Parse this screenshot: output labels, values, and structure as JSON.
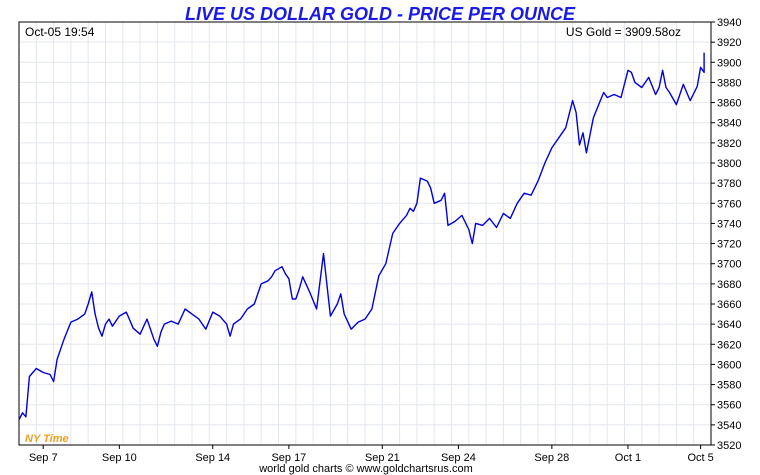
{
  "chart_data": {
    "type": "line",
    "title": "LIVE US DOLLAR GOLD - PRICE PER OUNCE",
    "header_left": "Oct-05  19:54",
    "header_right": "US Gold = 3909.58oz",
    "timezone_label": "NY Time",
    "footer": "world gold charts © www.goldchartsrus.com",
    "ylim": [
      3520,
      3940
    ],
    "yticks": [
      3520,
      3540,
      3560,
      3580,
      3600,
      3620,
      3640,
      3660,
      3680,
      3700,
      3720,
      3740,
      3760,
      3780,
      3800,
      3820,
      3840,
      3860,
      3880,
      3900,
      3920,
      3940
    ],
    "xlim": [
      0,
      100
    ],
    "xticks": [
      {
        "x": 3.5,
        "label": "Sep 7"
      },
      {
        "x": 14.5,
        "label": "Sep 10"
      },
      {
        "x": 28.0,
        "label": "Sep 14"
      },
      {
        "x": 39.0,
        "label": "Sep 17"
      },
      {
        "x": 52.5,
        "label": "Sep 21"
      },
      {
        "x": 63.5,
        "label": "Sep 24"
      },
      {
        "x": 77.0,
        "label": "Sep 28"
      },
      {
        "x": 88.0,
        "label": "Oct 1"
      },
      {
        "x": 98.5,
        "label": "Oct 5"
      }
    ],
    "grid": true,
    "line_color": "#0000dd",
    "series": [
      {
        "x": [
          0.0,
          0.5,
          1.0,
          1.5,
          2.5,
          3.5,
          4.5,
          5.0,
          5.5,
          6.5,
          7.5,
          8.5,
          9.5,
          10.0,
          10.5,
          11.0,
          11.5,
          12.0,
          12.5,
          13.0,
          13.5,
          14.5,
          15.5,
          16.5,
          17.5,
          18.5,
          19.5,
          20.0,
          20.5,
          21.0,
          22.0,
          23.0,
          24.0,
          25.0,
          26.0,
          27.0,
          28.0,
          29.0,
          30.0,
          30.5,
          31.0,
          32.0,
          33.0,
          34.0,
          35.0,
          36.0,
          36.5,
          37.0,
          38.0,
          38.5,
          39.0,
          39.5,
          40.0,
          40.5,
          41.0,
          42.0,
          43.0,
          44.0,
          45.0,
          46.0,
          46.5,
          47.0,
          48.0,
          49.0,
          50.0,
          51.0,
          52.0,
          53.0,
          54.0,
          55.0,
          56.0,
          56.5,
          57.0,
          57.5,
          58.0,
          59.0,
          59.5,
          60.0,
          61.0,
          61.5,
          62.0,
          63.0,
          64.0,
          65.0,
          65.5,
          66.0,
          67.0,
          68.0,
          69.0,
          70.0,
          71.0,
          72.0,
          73.0,
          74.0,
          75.0,
          76.0,
          77.0,
          78.0,
          79.0,
          80.0,
          80.5,
          81.0,
          81.5,
          82.0,
          83.0,
          84.0,
          84.5,
          85.0,
          86.0,
          87.0,
          88.0,
          88.5,
          89.0,
          90.0,
          91.0,
          92.0,
          92.5,
          93.0,
          93.5,
          94.0,
          95.0,
          96.0,
          97.0,
          98.0,
          98.5,
          99.0
        ],
        "y": [
          3545,
          3552,
          3548,
          3588,
          3596,
          3592,
          3590,
          3583,
          3605,
          3625,
          3642,
          3645,
          3650,
          3660,
          3672,
          3650,
          3636,
          3628,
          3640,
          3645,
          3638,
          3648,
          3652,
          3636,
          3630,
          3645,
          3625,
          3618,
          3632,
          3640,
          3643,
          3640,
          3655,
          3650,
          3645,
          3635,
          3652,
          3648,
          3640,
          3628,
          3640,
          3645,
          3655,
          3660,
          3680,
          3683,
          3687,
          3693,
          3697,
          3690,
          3685,
          3665,
          3665,
          3675,
          3687,
          3672,
          3655,
          3710,
          3648,
          3660,
          3670,
          3650,
          3635,
          3642,
          3645,
          3655,
          3688,
          3700,
          3730,
          3740,
          3748,
          3755,
          3752,
          3760,
          3785,
          3782,
          3775,
          3760,
          3763,
          3770,
          3738,
          3742,
          3748,
          3734,
          3720,
          3740,
          3738,
          3745,
          3736,
          3750,
          3745,
          3760,
          3770,
          3768,
          3782,
          3800,
          3815,
          3825,
          3835,
          3862,
          3850,
          3818,
          3830,
          3810,
          3845,
          3862,
          3870,
          3865,
          3868,
          3865,
          3892,
          3890,
          3880,
          3875,
          3885,
          3868,
          3875,
          3892,
          3875,
          3870,
          3858,
          3878,
          3862,
          3876,
          3895,
          3890
        ],
        "last": 3909.58
      }
    ]
  }
}
